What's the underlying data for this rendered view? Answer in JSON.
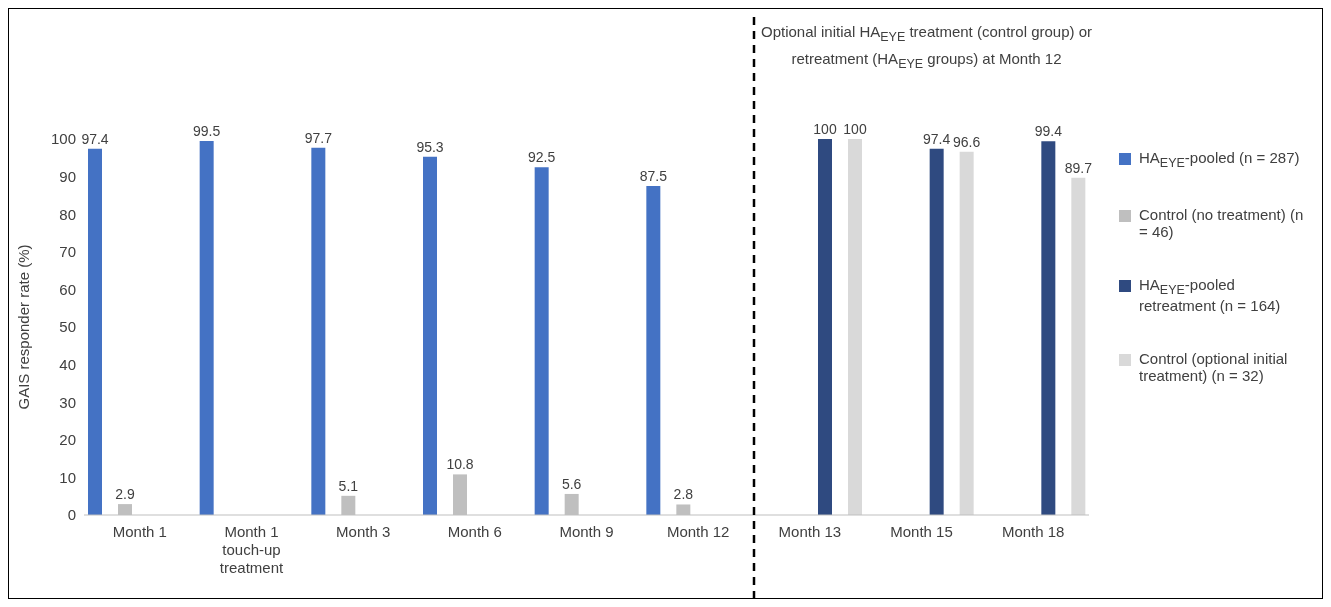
{
  "chart_data": {
    "type": "bar",
    "categories": [
      "Month 1",
      "Month 1 touch-up treatment",
      "Month 3",
      "Month 6",
      "Month 9",
      "Month 12",
      "Month 13",
      "Month 15",
      "Month 18"
    ],
    "ylabel": "GAIS responder rate (%)",
    "ylim": [
      0,
      100
    ],
    "yticks": [
      0,
      10,
      20,
      30,
      40,
      50,
      60,
      70,
      80,
      90,
      100
    ],
    "series": [
      {
        "name": "HA$_{EYE}$-pooled (n = 287)",
        "color": "#4472c4",
        "values": [
          97.4,
          99.5,
          97.7,
          95.3,
          92.5,
          87.5,
          null,
          null,
          null
        ]
      },
      {
        "name": "Control (no treatment) (n = 46)",
        "color": "#bfbfbf",
        "values": [
          2.9,
          null,
          5.1,
          10.8,
          5.6,
          2.8,
          null,
          null,
          null
        ]
      },
      {
        "name": "HA$_{EYE}$-pooled retreatment (n = 164)",
        "color": "#2f4a80",
        "values": [
          null,
          null,
          null,
          null,
          null,
          null,
          100,
          97.4,
          99.4
        ]
      },
      {
        "name": "Control (optional initial treatment) (n = 32)",
        "color": "#d9d9d9",
        "values": [
          null,
          null,
          null,
          null,
          null,
          null,
          100,
          96.6,
          89.7
        ]
      }
    ],
    "annotations": [
      "Optional initial HA$_{EYE}$ treatment (control group) or retreatment (HA$_{EYE}$ groups) at Month 12"
    ],
    "data_labels": true,
    "grid": false,
    "legend": "right"
  }
}
